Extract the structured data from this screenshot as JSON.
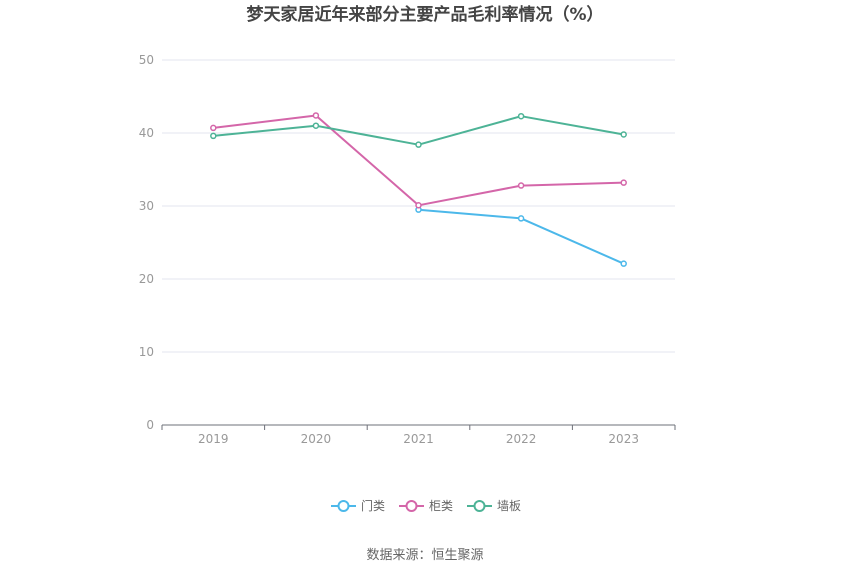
{
  "chart_data": {
    "type": "line",
    "title": "梦天家居近年来部分主要产品毛利率情况（%）",
    "xlabel": "",
    "ylabel": "",
    "categories": [
      "2019",
      "2020",
      "2021",
      "2022",
      "2023"
    ],
    "ylim": [
      0,
      50
    ],
    "yticks": [
      0,
      10,
      20,
      30,
      40,
      50
    ],
    "grid": true,
    "legend_position": "bottom",
    "series": [
      {
        "name": "门类",
        "color": "#4cb8ea",
        "values": [
          null,
          null,
          29.5,
          28.3,
          22.1
        ]
      },
      {
        "name": "柜类",
        "color": "#d466a9",
        "values": [
          40.7,
          42.4,
          30.1,
          32.8,
          33.2
        ]
      },
      {
        "name": "墙板",
        "color": "#4db396",
        "values": [
          39.6,
          41.0,
          38.4,
          42.3,
          39.8
        ]
      }
    ]
  },
  "source": "数据来源：恒生聚源"
}
